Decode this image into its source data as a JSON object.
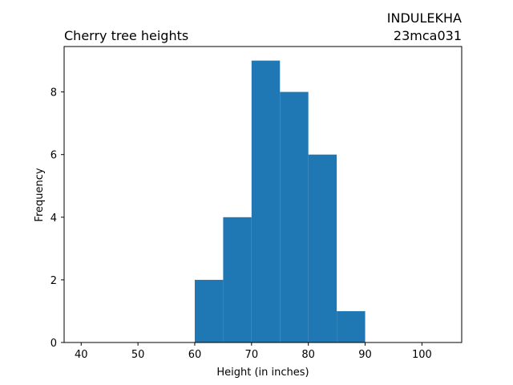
{
  "chart_data": {
    "type": "bar",
    "title": "Cherry tree heights",
    "annotation_lines": [
      "INDULEKHA",
      "23mca031"
    ],
    "xlabel": "Height (in inches)",
    "ylabel": "Frequency",
    "xlim": [
      37,
      107
    ],
    "ylim": [
      0,
      9.45
    ],
    "xticks": [
      40,
      50,
      60,
      70,
      80,
      90,
      100
    ],
    "yticks": [
      0,
      2,
      4,
      6,
      8
    ],
    "bins": [
      {
        "x0": 60,
        "x1": 65,
        "count": 2
      },
      {
        "x0": 65,
        "x1": 70,
        "count": 4
      },
      {
        "x0": 70,
        "x1": 75,
        "count": 9
      },
      {
        "x0": 75,
        "x1": 80,
        "count": 8
      },
      {
        "x0": 80,
        "x1": 85,
        "count": 6
      },
      {
        "x0": 85,
        "x1": 90,
        "count": 1
      }
    ],
    "bar_color": "#1f77b4",
    "grid": false,
    "legend": "none"
  }
}
